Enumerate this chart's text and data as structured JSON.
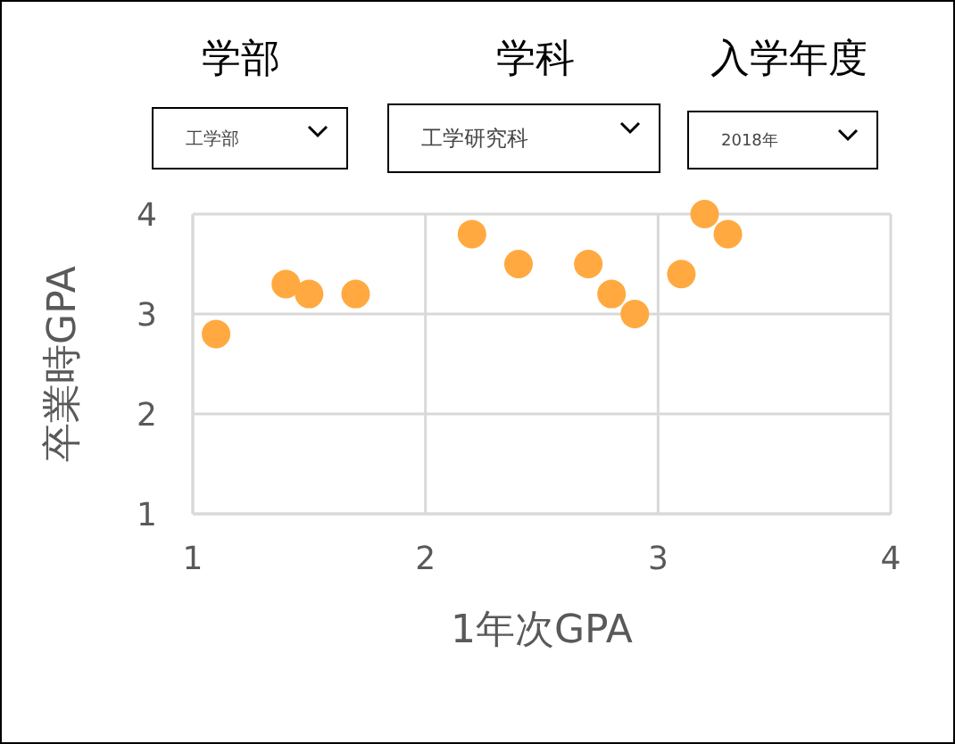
{
  "chart_data": {
    "type": "scatter",
    "xlabel": "1年次GPA",
    "ylabel": "卒業時GPA",
    "annotations": [
      "学部",
      "工学部",
      "学科",
      "工学研究科",
      "入学年度",
      "2018年"
    ],
    "x": [
      1.1,
      1.4,
      1.5,
      1.7,
      2.2,
      2.4,
      2.7,
      2.8,
      2.9,
      3.1,
      3.2,
      3.3
    ],
    "values": [
      2.8,
      3.3,
      3.2,
      3.2,
      3.8,
      3.5,
      3.5,
      3.2,
      3.0,
      3.4,
      4.0,
      3.8
    ],
    "color": "#ffa940",
    "marker": "circle",
    "xlim": [
      1,
      4
    ],
    "xticks": [
      1,
      2,
      3,
      4
    ],
    "ylim": [
      1,
      4
    ],
    "yticks": [
      1,
      2,
      3,
      4
    ],
    "grid": true
  }
}
